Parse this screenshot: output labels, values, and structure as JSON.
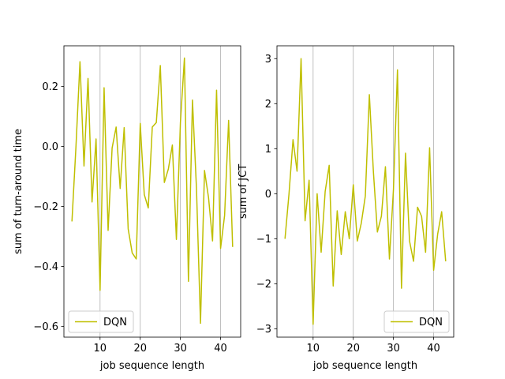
{
  "chart_data": [
    {
      "type": "line",
      "title": "",
      "xlabel": "job sequence length",
      "ylabel": "sum of turn-around time",
      "xlim": [
        1,
        45
      ],
      "ylim": [
        -0.636,
        0.336
      ],
      "xticks": [
        10,
        20,
        30,
        40
      ],
      "yticks": [
        -0.6,
        -0.4,
        -0.2,
        0.0,
        0.2
      ],
      "ytick_labels": [
        "−0.6",
        "−0.4",
        "−0.2",
        "0.0",
        "0.2"
      ],
      "grid": "vertical",
      "legend_position": "lower left",
      "color": "#bfbf00",
      "series": [
        {
          "name": "DQN",
          "x": [
            3,
            4,
            5,
            6,
            7,
            8,
            9,
            10,
            11,
            12,
            13,
            14,
            15,
            16,
            17,
            18,
            19,
            20,
            21,
            22,
            23,
            24,
            25,
            26,
            27,
            28,
            29,
            30,
            31,
            32,
            33,
            34,
            35,
            36,
            37,
            38,
            39,
            40,
            41,
            42,
            43
          ],
          "y": [
            -0.25,
            0.0,
            0.283,
            -0.065,
            0.227,
            -0.185,
            0.025,
            -0.48,
            0.196,
            -0.28,
            -0.005,
            0.065,
            -0.14,
            0.063,
            -0.275,
            -0.355,
            -0.375,
            0.077,
            -0.16,
            -0.205,
            0.065,
            0.08,
            0.27,
            -0.12,
            -0.075,
            0.005,
            -0.31,
            0.08,
            0.295,
            -0.45,
            0.155,
            -0.14,
            -0.59,
            -0.08,
            -0.17,
            -0.315,
            0.188,
            -0.34,
            -0.23,
            0.087,
            -0.335
          ]
        }
      ]
    },
    {
      "type": "line",
      "title": "",
      "xlabel": "job sequence length",
      "ylabel": "sum of JCT",
      "xlim": [
        1,
        45
      ],
      "ylim": [
        -3.185,
        3.285
      ],
      "xticks": [
        10,
        20,
        30,
        40
      ],
      "yticks": [
        -3,
        -2,
        -1,
        0,
        1,
        2,
        3
      ],
      "ytick_labels": [
        "−3",
        "−2",
        "−1",
        "0",
        "1",
        "2",
        "3"
      ],
      "grid": "vertical",
      "legend_position": "lower right",
      "color": "#bfbf00",
      "series": [
        {
          "name": "DQN",
          "x": [
            3,
            4,
            5,
            6,
            7,
            8,
            9,
            10,
            11,
            12,
            13,
            14,
            15,
            16,
            17,
            18,
            19,
            20,
            21,
            22,
            23,
            24,
            25,
            26,
            27,
            28,
            29,
            30,
            31,
            32,
            33,
            34,
            35,
            36,
            37,
            38,
            39,
            40,
            41,
            42,
            43
          ],
          "y": [
            -1.0,
            0.0,
            1.2,
            0.5,
            3.0,
            -0.6,
            0.3,
            -2.9,
            0.0,
            -1.3,
            0.05,
            0.63,
            -2.05,
            -0.38,
            -1.35,
            -0.4,
            -1.0,
            0.2,
            -1.05,
            -0.65,
            -0.05,
            2.2,
            0.5,
            -0.85,
            -0.5,
            0.6,
            -1.45,
            0.1,
            2.75,
            -2.1,
            0.9,
            -1.05,
            -1.5,
            -0.3,
            -0.5,
            -1.3,
            1.02,
            -1.7,
            -0.9,
            -0.4,
            -1.5
          ]
        }
      ]
    }
  ]
}
